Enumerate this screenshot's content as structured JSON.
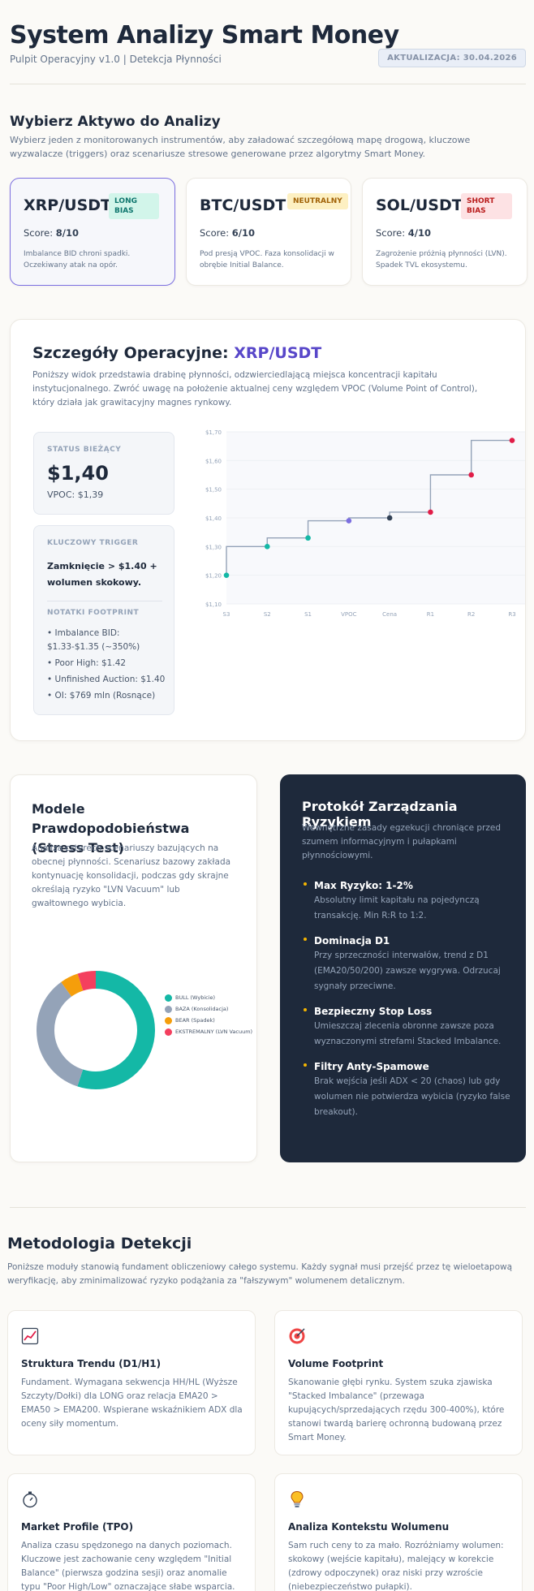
{
  "header": {
    "title": "System Analizy Smart Money",
    "subtitle": "Pulpit Operacyjny v1.0 | Detekcja Płynności",
    "update_badge": "AKTUALIZACJA: 30.04.2026"
  },
  "assets": {
    "title": "Wybierz Aktywo do Analizy",
    "description": "Wybierz jeden z monitorowanych instrumentów, aby załadować szczegółową mapę drogową, kluczowe wyzwalacze (triggers) oraz scenariusze stresowe generowane przez algorytmy Smart Money.",
    "score_label": "Score:",
    "cards": [
      {
        "symbol": "XRP/USDT",
        "badge": "LONG BIAS",
        "score": "8/10",
        "note": "Imbalance BID chroni spadki. Oczekiwany atak na opór."
      },
      {
        "symbol": "BTC/USDT",
        "badge": "NEUTRALNY",
        "score": "6/10",
        "note": "Pod presją VPOC. Faza konsolidacji w obrębie Initial Balance."
      },
      {
        "symbol": "SOL/USDT",
        "badge": "SHORT BIAS",
        "score": "4/10",
        "note": "Zagrożenie próżnią płynności (LVN). Spadek TVL ekosystemu."
      }
    ],
    "colors": {
      "long_bg": "#d2f5ea",
      "long_fg": "#0f766e",
      "neutral_bg": "#fdf0c2",
      "neutral_fg": "#a16207",
      "short_bg": "#fde2e4",
      "short_fg": "#b91c1c"
    }
  },
  "details": {
    "title_prefix": "Szczegóły Operacyjne:",
    "symbol": "XRP/USDT",
    "description": "Poniższy widok przedstawia drabinę płynności, odzwierciedlającą miejsca koncentracji kapitału instytucjonalnego. Zwróć uwagę na położenie aktualnej ceny względem VPOC (Volume Point of Control), który działa jak grawitacyjny magnes rynkowy.",
    "status": {
      "label": "STATUS BIEŻĄCY",
      "price": "$1,40",
      "vpoc": "VPOC: $1,39"
    },
    "trigger": {
      "label": "KLUCZOWY TRIGGER",
      "text": "Zamknięcie > $1.40 + wolumen skokowy."
    },
    "footprint": {
      "label": "NOTATKI FOOTPRINT",
      "items": [
        "• Imbalance BID: $1.33-$1.35 (~350%)",
        "• Poor High: $1.42",
        "• Unfinished Auction: $1.40",
        "• OI: $769 mln (Rosnące)"
      ]
    }
  },
  "chart_data": {
    "type": "line",
    "step": true,
    "categories": [
      "S3",
      "S2",
      "S1",
      "VPOC",
      "Cena",
      "R1",
      "R2",
      "R3"
    ],
    "values": [
      1.2,
      1.3,
      1.33,
      1.39,
      1.4,
      1.42,
      1.55,
      1.67
    ],
    "point_colors": [
      "#14b8a6",
      "#14b8a6",
      "#14b8a6",
      "#7c6fe0",
      "#334155",
      "#e11d48",
      "#e11d48",
      "#e11d48"
    ],
    "ylim": [
      1.1,
      1.7
    ],
    "yticks": [
      "$1,10",
      "$1,20",
      "$1,30",
      "$1,40",
      "$1,50",
      "$1,60",
      "$1,70"
    ],
    "ytick_values": [
      1.1,
      1.2,
      1.3,
      1.4,
      1.5,
      1.6,
      1.7
    ],
    "line_color": "#94a3b8",
    "grid": true
  },
  "models": {
    "title": "Modele Prawdopodobieństwa (Stress Test)",
    "description": "Analiza czterech scenariuszy bazujących na obecnej płynności. Scenariusz bazowy zakłada kontynuację konsolidacji, podczas gdy skrajne określają ryzyko \"LVN Vacuum\" lub gwałtownego wybicia.",
    "pie": {
      "type": "pie",
      "labels": [
        "BULL (Wybicie)",
        "BAZA (Konsolidacja)",
        "BEAR (Spadek)",
        "EKSTREMALNY (LVN Vacuum)"
      ],
      "values": [
        55,
        35,
        5,
        5
      ],
      "colors": [
        "#14b8a6",
        "#94a3b8",
        "#f59e0b",
        "#f43f5e"
      ]
    }
  },
  "risk": {
    "title": "Protokół Zarządzania Ryzykiem",
    "description": "Wewnętrzne zasady egzekucji chroniące przed szumem informacyjnym i pułapkami płynnościowymi.",
    "items": [
      {
        "title": "Max Ryzyko: 1-2%",
        "text": "Absolutny limit kapitału na pojedynczą transakcję. Min R:R to 1:2."
      },
      {
        "title": "Dominacja D1",
        "text": "Przy sprzeczności interwałów, trend z D1 (EMA20/50/200) zawsze wygrywa. Odrzucaj sygnały przeciwne."
      },
      {
        "title": "Bezpieczny Stop Loss",
        "text": "Umieszczaj zlecenia obronne zawsze poza wyznaczonymi strefami Stacked Imbalance."
      },
      {
        "title": "Filtry Anty-Spamowe",
        "text": "Brak wejścia jeśli ADX < 20 (chaos) lub gdy wolumen nie potwierdza wybicia (ryzyko false breakout)."
      }
    ]
  },
  "methodology": {
    "title": "Metodologia Detekcji",
    "description": "Poniższe moduły stanowią fundament obliczeniowy całego systemu. Każdy sygnał musi przejść przez tę wieloetapową weryfikację, aby zminimalizować ryzyko podążania za \"fałszywym\" wolumenem detalicznym.",
    "cards": [
      {
        "icon": "chart-up-icon",
        "title": "Struktura Trendu (D1/H1)",
        "text": "Fundament. Wymagana sekwencja HH/HL (Wyższe Szczyty/Dołki) dla LONG oraz relacja EMA20 > EMA50 > EMA200. Wspierane wskaźnikiem ADX dla oceny siły momentum."
      },
      {
        "icon": "target-icon",
        "title": "Volume Footprint",
        "text": "Skanowanie głębi rynku. System szuka zjawiska \"Stacked Imbalance\" (przewaga kupujących/sprzedających rzędu 300-400%), które stanowi twardą barierę ochronną budowaną przez Smart Money."
      },
      {
        "icon": "stopwatch-icon",
        "title": "Market Profile (TPO)",
        "text": "Analiza czasu spędzonego na danych poziomach. Kluczowe jest zachowanie ceny względem \"Initial Balance\" (pierwsza godzina sesji) oraz anomalie typu \"Poor High/Low\" oznaczające słabe wsparcia."
      },
      {
        "icon": "lightbulb-icon",
        "title": "Analiza Kontekstu Wolumenu",
        "text": "Sam ruch ceny to za mało. Rozróżniamy wolumen: skokowy (wejście kapitału), malejący w korekcie (zdrowy odpoczynek) oraz niski przy wzroście (niebezpieczeństwo pułapki)."
      }
    ]
  }
}
